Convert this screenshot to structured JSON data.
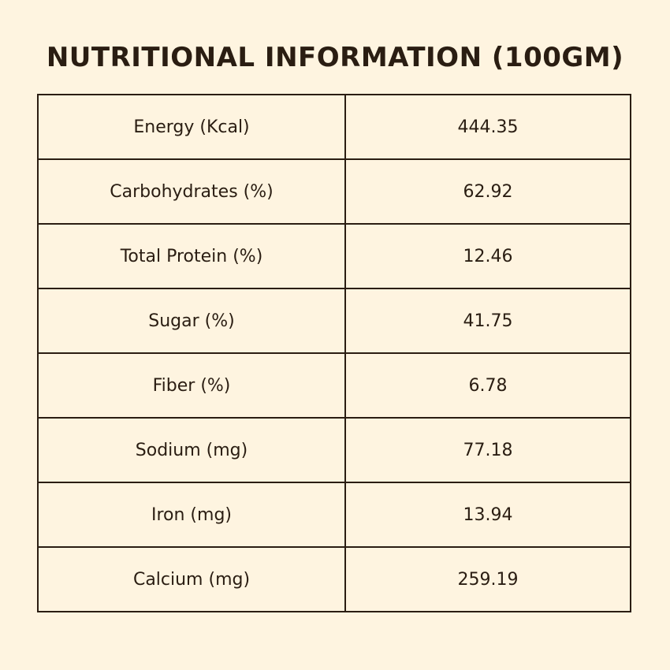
{
  "title": "NUTRITIONAL INFORMATION (100GM)",
  "rows": [
    {
      "label": "Energy (Kcal)",
      "value": "444.35"
    },
    {
      "label": "Carbohydrates (%)",
      "value": "62.92"
    },
    {
      "label": "Total Protein (%)",
      "value": "12.46"
    },
    {
      "label": "Sugar (%)",
      "value": "41.75"
    },
    {
      "label": "Fiber (%)",
      "value": "6.78"
    },
    {
      "label": "Sodium (mg)",
      "value": "77.18"
    },
    {
      "label": "Iron (mg)",
      "value": "13.94"
    },
    {
      "label": "Calcium (mg)",
      "value": "259.19"
    }
  ],
  "colors": {
    "background": "#fef4e0",
    "text": "#2a1d12",
    "border": "#2a1d12"
  }
}
